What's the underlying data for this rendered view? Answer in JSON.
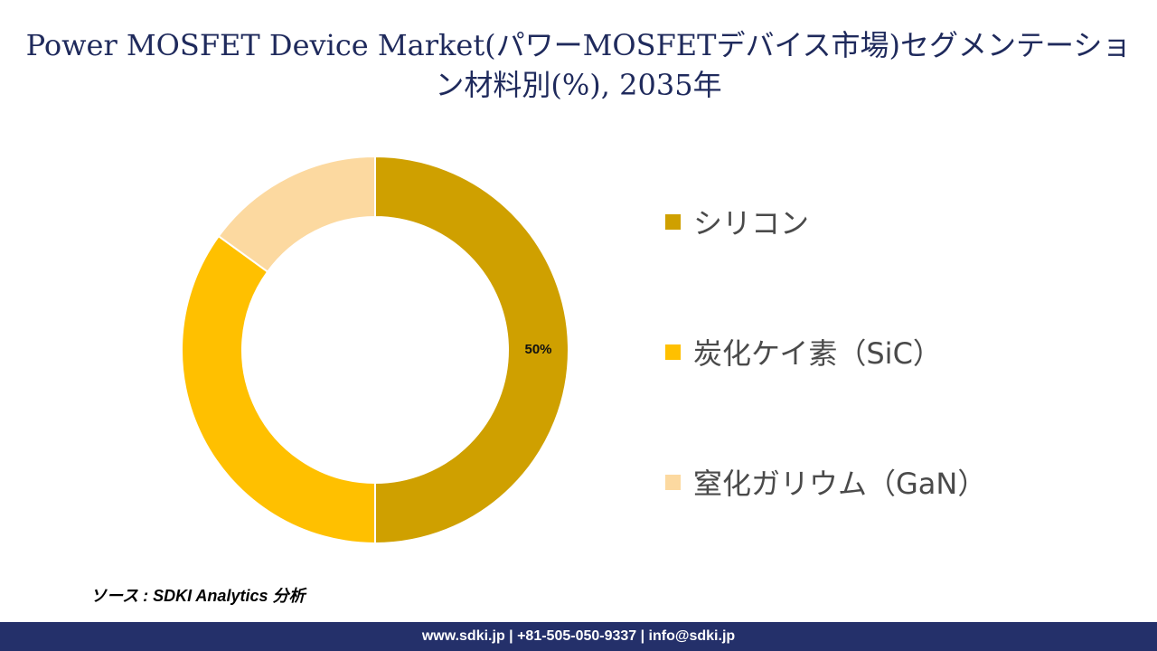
{
  "title": "Power MOSFET Device Market(パワーMOSFETデバイス市場)セグメンテーション材料別(%), 2035年",
  "source": "ソース : SDKI Analytics 分析",
  "footer": "www.sdki.jp | +81-505-050-9337 | info@sdki.jp",
  "chart_data": {
    "type": "donut",
    "title": "Power MOSFET Device Market(パワーMOSFETデバイス市場)セグメンテーション材料別(%), 2035年",
    "legend_position": "right",
    "slices": [
      {
        "name": "シリコン",
        "value": 50,
        "color": "#CFA000",
        "label": "50%"
      },
      {
        "name": "炭化ケイ素（SiC）",
        "value": 35,
        "color": "#FFC000",
        "label": ""
      },
      {
        "name": "窒化ガリウム（GaN）",
        "value": 15,
        "color": "#FCD9A0",
        "label": ""
      }
    ]
  }
}
